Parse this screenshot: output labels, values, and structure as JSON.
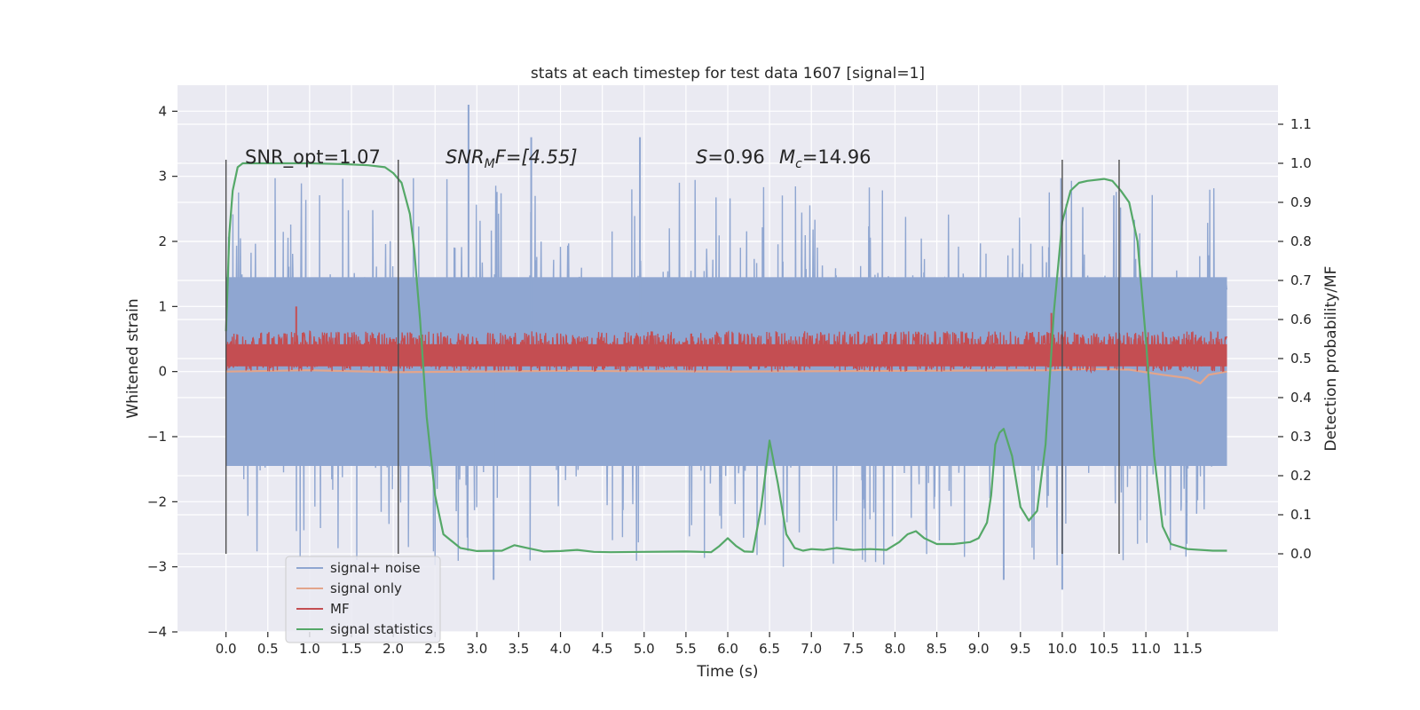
{
  "chart_data": {
    "type": "line",
    "title": "stats at each timestep for test data 1607 [signal=1]",
    "xlabel": "Time (s)",
    "ylabel": "Whitened strain",
    "ylabel_right": "Detection probability/MF",
    "xlim": [
      -0.58,
      12.58
    ],
    "ylim": [
      -4.0,
      4.4
    ],
    "ylim_right": [
      -0.2,
      1.2
    ],
    "x_ticks": [
      0.0,
      0.5,
      1.0,
      1.5,
      2.0,
      2.5,
      3.0,
      3.5,
      4.0,
      4.5,
      5.0,
      5.5,
      6.0,
      6.5,
      7.0,
      7.5,
      8.0,
      8.5,
      9.0,
      9.5,
      10.0,
      10.5,
      11.0,
      11.5
    ],
    "x_tick_labels": [
      "0.0",
      "0.5",
      "1.0",
      "1.5",
      "2.0",
      "2.5",
      "3.0",
      "3.5",
      "4.0",
      "4.5",
      "5.0",
      "5.5",
      "6.0",
      "6.5",
      "7.0",
      "7.5",
      "8.0",
      "8.5",
      "9.0",
      "9.5",
      "10.0",
      "10.5",
      "11.0",
      "11.5"
    ],
    "y_ticks": [
      -4,
      -3,
      -2,
      -1,
      0,
      1,
      2,
      3,
      4
    ],
    "y_tick_labels": [
      "−4",
      "−3",
      "−2",
      "−1",
      "0",
      "1",
      "2",
      "3",
      "4"
    ],
    "y_right_ticks": [
      0.0,
      0.1,
      0.2,
      0.3,
      0.4,
      0.5,
      0.6,
      0.7,
      0.8,
      0.9,
      1.0,
      1.1
    ],
    "y_right_tick_labels": [
      "0.0",
      "0.1",
      "0.2",
      "0.3",
      "0.4",
      "0.5",
      "0.6",
      "0.7",
      "0.8",
      "0.9",
      "1.0",
      "1.1"
    ],
    "grid": true,
    "legend_position": "bottom-left",
    "annotations": {
      "snr_opt": "SNR_opt=1.07",
      "snr_mf_main": "SNR",
      "snr_mf_sub": "M",
      "snr_mf_rest": "F=[4.55]",
      "s_sym": "S",
      "s_val": "=0.96",
      "mc_sym": "M",
      "mc_sub": "c",
      "mc_val": "=14.96"
    },
    "vlines": [
      0.0,
      2.06,
      10.0,
      10.68
    ],
    "series": [
      {
        "name": "signal+ noise",
        "color": "#8fa6d1",
        "axis": "left",
        "noise": {
          "x_start": 0.0,
          "x_end": 11.97,
          "typical_envelope": [
            -1.45,
            1.45
          ],
          "max_peak": 4.1,
          "min_peak": -3.35
        }
      },
      {
        "name": "signal only",
        "color": "#e3a58b",
        "axis": "left",
        "x": [
          0.0,
          1.0,
          2.0,
          4.0,
          6.0,
          8.0,
          9.9,
          10.3,
          10.8,
          11.2,
          11.5,
          11.65,
          11.75,
          11.97
        ],
        "y": [
          0.0,
          0.02,
          -0.01,
          0.01,
          0.0,
          0.01,
          0.02,
          0.04,
          0.03,
          -0.05,
          -0.1,
          -0.18,
          -0.05,
          0.0
        ]
      },
      {
        "name": "MF",
        "color": "#c44e52",
        "axis": "left",
        "band": {
          "x_start": 0.0,
          "x_end": 11.97,
          "low": 0.0,
          "high": 0.62,
          "spike_x": 0.84,
          "spike_y": 1.0,
          "spike2_x": 9.87,
          "spike2_y": 0.9
        }
      },
      {
        "name": "signal statistics",
        "color": "#55a868",
        "axis": "right",
        "x": [
          0.0,
          0.04,
          0.08,
          0.14,
          0.2,
          0.3,
          0.6,
          1.0,
          1.4,
          1.7,
          1.9,
          2.0,
          2.1,
          2.2,
          2.25,
          2.32,
          2.4,
          2.5,
          2.6,
          2.8,
          3.0,
          3.3,
          3.45,
          3.6,
          3.8,
          4.0,
          4.2,
          4.4,
          4.6,
          5.0,
          5.5,
          5.8,
          5.9,
          6.0,
          6.1,
          6.2,
          6.3,
          6.4,
          6.5,
          6.6,
          6.7,
          6.8,
          6.9,
          7.0,
          7.15,
          7.3,
          7.5,
          7.7,
          7.9,
          8.05,
          8.15,
          8.25,
          8.35,
          8.5,
          8.7,
          8.9,
          9.0,
          9.1,
          9.15,
          9.2,
          9.25,
          9.3,
          9.4,
          9.5,
          9.6,
          9.7,
          9.8,
          9.9,
          10.0,
          10.1,
          10.2,
          10.3,
          10.5,
          10.6,
          10.7,
          10.8,
          10.9,
          11.0,
          11.1,
          11.2,
          11.3,
          11.5,
          11.8,
          11.97
        ],
        "y": [
          0.57,
          0.82,
          0.93,
          0.99,
          1.0,
          1.0,
          1.0,
          1.0,
          0.998,
          0.995,
          0.99,
          0.975,
          0.95,
          0.87,
          0.78,
          0.6,
          0.35,
          0.15,
          0.05,
          0.015,
          0.007,
          0.008,
          0.022,
          0.015,
          0.006,
          0.007,
          0.01,
          0.005,
          0.004,
          0.005,
          0.006,
          0.004,
          0.02,
          0.04,
          0.02,
          0.006,
          0.005,
          0.12,
          0.29,
          0.18,
          0.05,
          0.015,
          0.008,
          0.012,
          0.01,
          0.015,
          0.01,
          0.012,
          0.01,
          0.03,
          0.05,
          0.058,
          0.04,
          0.025,
          0.025,
          0.03,
          0.04,
          0.08,
          0.15,
          0.28,
          0.31,
          0.32,
          0.25,
          0.12,
          0.085,
          0.11,
          0.28,
          0.62,
          0.85,
          0.93,
          0.95,
          0.955,
          0.96,
          0.955,
          0.93,
          0.9,
          0.8,
          0.55,
          0.25,
          0.07,
          0.025,
          0.012,
          0.008,
          0.008
        ]
      }
    ]
  }
}
